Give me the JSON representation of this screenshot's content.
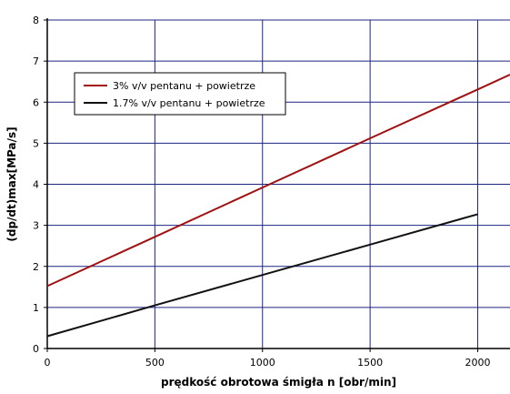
{
  "chart_data": {
    "type": "line",
    "xlabel": "prędkość obrotowa śmigła n [obr/min]",
    "ylabel": "(dp/dt)max[MPa/s]",
    "xlim": [
      0,
      2150
    ],
    "ylim": [
      0,
      8
    ],
    "xticks": [
      0,
      500,
      1000,
      1500,
      2000
    ],
    "yticks": [
      0,
      1,
      2,
      3,
      4,
      5,
      6,
      7,
      8
    ],
    "grid": true,
    "legend_position": "top-left",
    "series": [
      {
        "name": "3%    v/v pentanu + powietrze",
        "color": "#a01010",
        "x": [
          0,
          500,
          1000,
          1500,
          2000,
          2150
        ],
        "y": [
          1.52,
          2.72,
          3.92,
          5.12,
          6.31,
          6.67
        ]
      },
      {
        "name": "1.7%  v/v pentanu + powietrze",
        "color": "#111111",
        "x": [
          0,
          500,
          1000,
          1500,
          2000
        ],
        "y": [
          0.3,
          1.05,
          1.79,
          2.53,
          3.27
        ]
      }
    ]
  },
  "colors": {
    "grid": "#1c2580",
    "axis": "#000000"
  }
}
